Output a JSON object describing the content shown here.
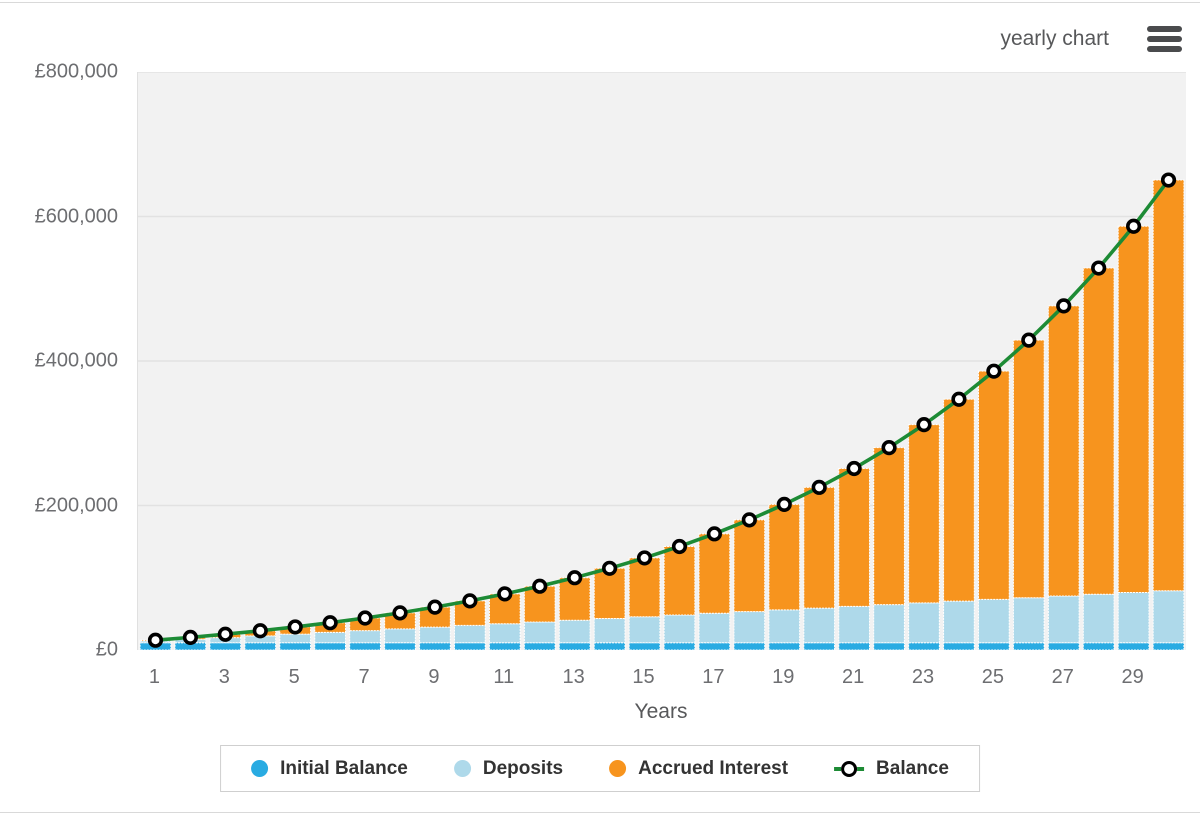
{
  "header": {
    "title": "yearly chart",
    "menu_icon": "hamburger-icon"
  },
  "chart_data": {
    "type": "bar",
    "subtype": "stacked-bars-with-line-overlay",
    "title": "yearly chart",
    "xlabel": "Years",
    "ylabel": "",
    "ylim": [
      0,
      800000
    ],
    "grid": true,
    "legend_position": "bottom",
    "plot_bg_color": "#f2f2f2",
    "grid_color": "#e2e2e2",
    "x": [
      1,
      2,
      3,
      4,
      5,
      6,
      7,
      8,
      9,
      10,
      11,
      12,
      13,
      14,
      15,
      16,
      17,
      18,
      19,
      20,
      21,
      22,
      23,
      24,
      25,
      26,
      27,
      28,
      29,
      30
    ],
    "x_tick_values": [
      1,
      3,
      5,
      7,
      9,
      11,
      13,
      15,
      17,
      19,
      21,
      23,
      25,
      27,
      29
    ],
    "y_ticks": [
      {
        "value": 0,
        "label": "£0"
      },
      {
        "value": 200000,
        "label": "£200,000"
      },
      {
        "value": 400000,
        "label": "£400,000"
      },
      {
        "value": 600000,
        "label": "£600,000"
      },
      {
        "value": 800000,
        "label": "£800,000"
      }
    ],
    "series": [
      {
        "name": "Initial Balance",
        "type": "bar",
        "color": "#29abe2",
        "values": [
          10000,
          10000,
          10000,
          10000,
          10000,
          10000,
          10000,
          10000,
          10000,
          10000,
          10000,
          10000,
          10000,
          10000,
          10000,
          10000,
          10000,
          10000,
          10000,
          10000,
          10000,
          10000,
          10000,
          10000,
          10000,
          10000,
          10000,
          10000,
          10000,
          10000
        ]
      },
      {
        "name": "Deposits",
        "type": "bar",
        "color": "#aed9ea",
        "values": [
          2400,
          4800,
          7200,
          9600,
          12000,
          14400,
          16800,
          19200,
          21600,
          24000,
          26400,
          28800,
          31200,
          33600,
          36000,
          38400,
          40800,
          43200,
          45600,
          48000,
          50400,
          52800,
          55200,
          57600,
          60000,
          62400,
          64800,
          67200,
          69600,
          72000
        ]
      },
      {
        "name": "Accrued Interest",
        "type": "bar",
        "color": "#f7941e",
        "values": [
          1160,
          2693,
          4638,
          7038,
          9940,
          13398,
          17469,
          22218,
          27715,
          34039,
          41277,
          49524,
          58886,
          69479,
          81433,
          94890,
          110007,
          126959,
          145937,
          167153,
          190842,
          217262,
          246700,
          279473,
          315928,
          356453,
          401473,
          451456,
          506924,
          568455
        ]
      },
      {
        "name": "Balance",
        "type": "line",
        "color": "#1d8b35",
        "marker_fill": "#ffffff",
        "marker_stroke": "#000000",
        "values": [
          13560,
          17493,
          21838,
          26638,
          31940,
          37798,
          44269,
          51418,
          59315,
          68039,
          77677,
          88324,
          100086,
          113079,
          127433,
          143290,
          160807,
          180159,
          201537,
          225153,
          251242,
          280062,
          311900,
          347073,
          385928,
          428853,
          476273,
          528656,
          586524,
          650455
        ]
      }
    ]
  }
}
